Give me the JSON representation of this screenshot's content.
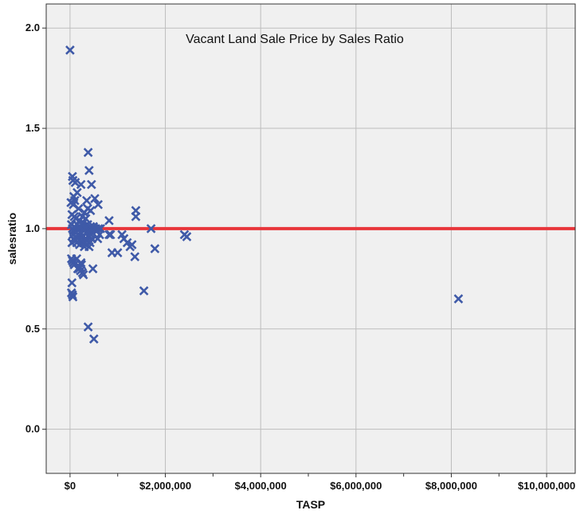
{
  "chart_data": {
    "type": "scatter",
    "title": "Vacant Land Sale Price by Sales Ratio",
    "xlabel": "TASP",
    "ylabel": "salesratio",
    "xlim": [
      -500000,
      10600000
    ],
    "ylim": [
      -0.22,
      2.12
    ],
    "x_ticks": [
      0,
      2000000,
      4000000,
      6000000,
      8000000,
      10000000
    ],
    "x_tick_labels": [
      "$0",
      "$2,000,000",
      "$4,000,000",
      "$6,000,000",
      "$8,000,000",
      "$10,000,000"
    ],
    "x_minor_ticks": [
      1000000,
      3000000,
      5000000,
      7000000,
      9000000
    ],
    "y_ticks": [
      0.0,
      0.5,
      1.0,
      1.5,
      2.0
    ],
    "y_tick_labels": [
      "0.0",
      "0.5",
      "1.0",
      "1.5",
      "2.0"
    ],
    "grid": true,
    "reference_line": {
      "y": 1.0,
      "color": "#e8353a"
    },
    "colors": {
      "marker": "#3f5aa8",
      "plot_background": "#f0f0f0",
      "grid": "#bdbdbd"
    },
    "marker": "x",
    "points": [
      [
        0,
        1.89
      ],
      [
        50000,
        1.26
      ],
      [
        60000,
        1.24
      ],
      [
        110000,
        1.23
      ],
      [
        230000,
        1.22
      ],
      [
        150000,
        1.18
      ],
      [
        80000,
        1.16
      ],
      [
        20000,
        1.13
      ],
      [
        70000,
        1.12
      ],
      [
        100000,
        1.14
      ],
      [
        180000,
        1.1
      ],
      [
        40000,
        1.07
      ],
      [
        90000,
        1.06
      ],
      [
        120000,
        1.05
      ],
      [
        200000,
        1.04
      ],
      [
        260000,
        1.06
      ],
      [
        300000,
        1.08
      ],
      [
        330000,
        1.05
      ],
      [
        280000,
        1.03
      ],
      [
        380000,
        1.38
      ],
      [
        400000,
        1.29
      ],
      [
        450000,
        1.22
      ],
      [
        520000,
        1.15
      ],
      [
        350000,
        1.14
      ],
      [
        590000,
        1.12
      ],
      [
        430000,
        1.09
      ],
      [
        370000,
        1.1
      ],
      [
        30000,
        1.02
      ],
      [
        50000,
        1.0
      ],
      [
        70000,
        0.99
      ],
      [
        90000,
        1.01
      ],
      [
        110000,
        0.98
      ],
      [
        130000,
        1.0
      ],
      [
        150000,
        1.02
      ],
      [
        170000,
        0.99
      ],
      [
        190000,
        1.01
      ],
      [
        210000,
        1.0
      ],
      [
        230000,
        0.98
      ],
      [
        250000,
        1.02
      ],
      [
        270000,
        1.0
      ],
      [
        290000,
        0.99
      ],
      [
        310000,
        1.01
      ],
      [
        330000,
        1.0
      ],
      [
        350000,
        0.98
      ],
      [
        370000,
        1.02
      ],
      [
        390000,
        1.0
      ],
      [
        410000,
        0.99
      ],
      [
        430000,
        1.01
      ],
      [
        450000,
        1.0
      ],
      [
        470000,
        0.98
      ],
      [
        490000,
        1.01
      ],
      [
        510000,
        1.0
      ],
      [
        540000,
        1.0
      ],
      [
        570000,
        0.99
      ],
      [
        600000,
        1.0
      ],
      [
        640000,
        1.0
      ],
      [
        60000,
        0.97
      ],
      [
        80000,
        0.95
      ],
      [
        100000,
        0.94
      ],
      [
        120000,
        0.96
      ],
      [
        140000,
        0.93
      ],
      [
        160000,
        0.95
      ],
      [
        180000,
        0.97
      ],
      [
        200000,
        0.92
      ],
      [
        240000,
        0.94
      ],
      [
        260000,
        0.96
      ],
      [
        280000,
        0.93
      ],
      [
        300000,
        0.91
      ],
      [
        320000,
        0.95
      ],
      [
        340000,
        0.92
      ],
      [
        360000,
        0.94
      ],
      [
        380000,
        0.96
      ],
      [
        400000,
        0.91
      ],
      [
        420000,
        0.93
      ],
      [
        440000,
        0.97
      ],
      [
        460000,
        0.95
      ],
      [
        40000,
        0.93
      ],
      [
        30000,
        0.85
      ],
      [
        50000,
        0.84
      ],
      [
        70000,
        0.83
      ],
      [
        90000,
        0.82
      ],
      [
        140000,
        0.85
      ],
      [
        160000,
        0.8
      ],
      [
        190000,
        0.8
      ],
      [
        220000,
        0.79
      ],
      [
        240000,
        0.82
      ],
      [
        260000,
        0.78
      ],
      [
        280000,
        0.77
      ],
      [
        200000,
        0.81
      ],
      [
        230000,
        0.83
      ],
      [
        40000,
        0.73
      ],
      [
        30000,
        0.68
      ],
      [
        60000,
        0.66
      ],
      [
        50000,
        0.67
      ],
      [
        380000,
        0.51
      ],
      [
        500000,
        0.45
      ],
      [
        480000,
        0.8
      ],
      [
        580000,
        0.95
      ],
      [
        620000,
        0.97
      ],
      [
        820000,
        1.04
      ],
      [
        820000,
        0.97
      ],
      [
        850000,
        0.97
      ],
      [
        880000,
        0.88
      ],
      [
        1000000,
        0.88
      ],
      [
        1090000,
        0.97
      ],
      [
        1130000,
        0.95
      ],
      [
        1200000,
        0.93
      ],
      [
        1260000,
        0.91
      ],
      [
        1300000,
        0.92
      ],
      [
        1380000,
        1.09
      ],
      [
        1380000,
        1.06
      ],
      [
        1360000,
        0.86
      ],
      [
        1550000,
        0.69
      ],
      [
        1700000,
        1.0
      ],
      [
        1780000,
        0.9
      ],
      [
        2400000,
        0.97
      ],
      [
        2450000,
        0.96
      ],
      [
        8150000,
        0.65
      ]
    ]
  }
}
